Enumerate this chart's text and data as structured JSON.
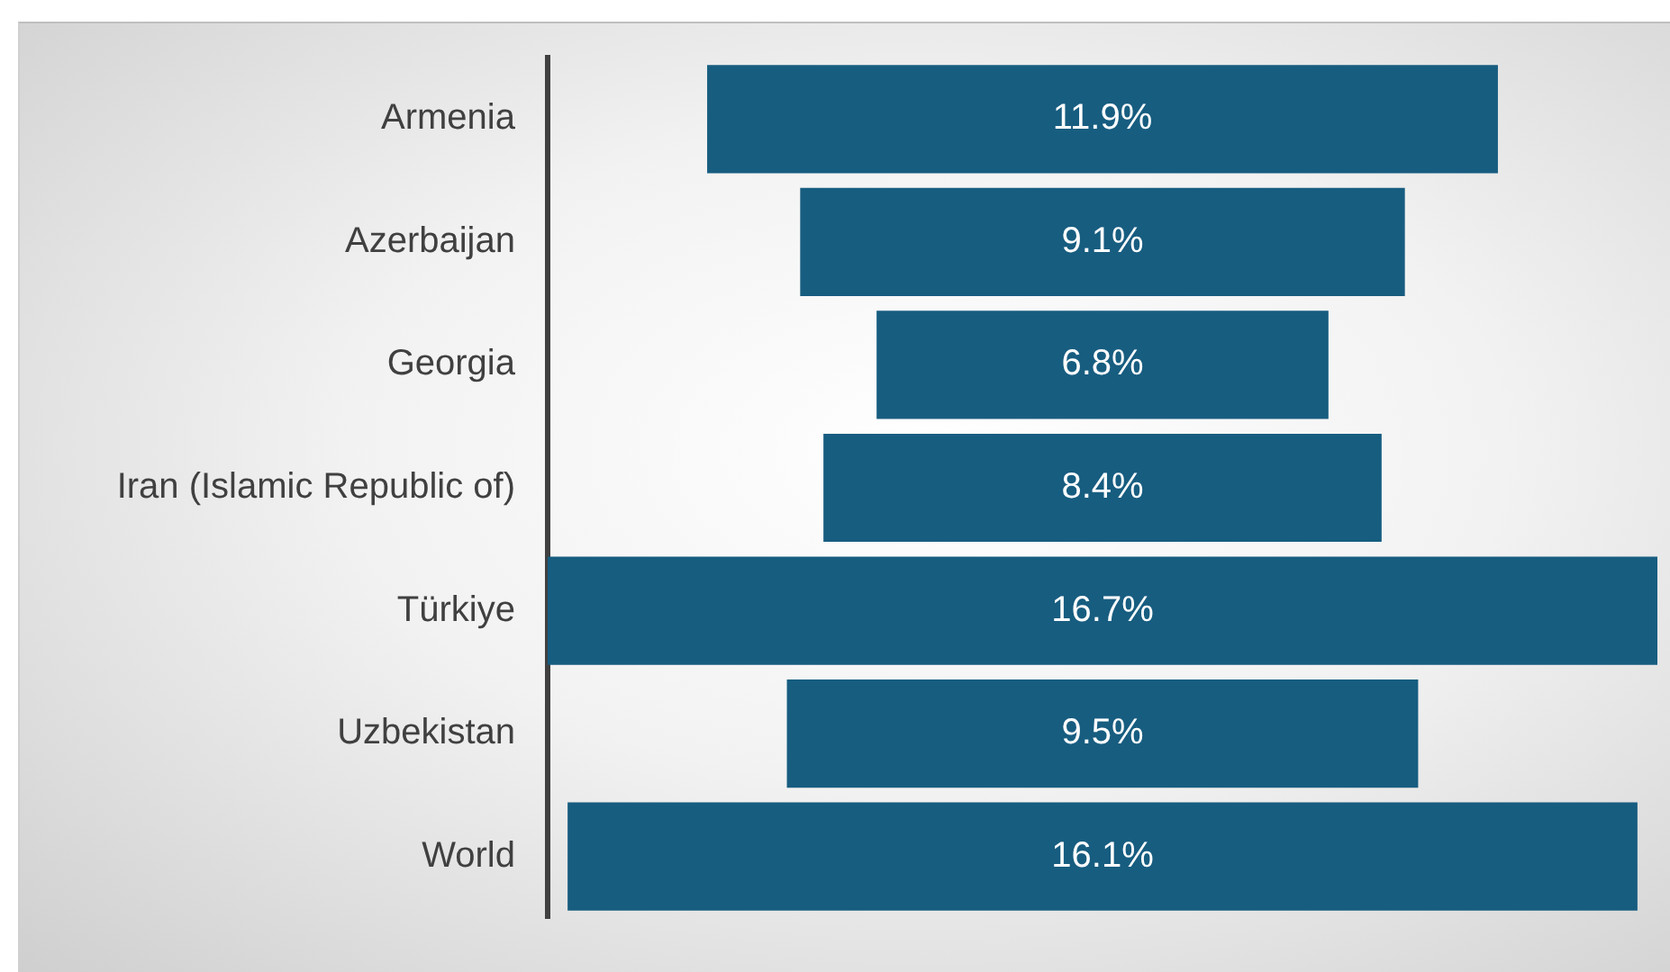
{
  "chart_data": {
    "type": "other",
    "categories": [
      "Armenia",
      "Azerbaijan",
      "Georgia",
      "Iran (Islamic Republic of)",
      "Türkiye",
      "Uzbekistan",
      "World"
    ],
    "values": [
      11.9,
      9.1,
      6.8,
      8.4,
      16.7,
      9.5,
      16.1
    ],
    "value_labels": [
      "11.9%",
      "9.1%",
      "6.8%",
      "8.4%",
      "16.7%",
      "9.5%",
      "16.1%"
    ],
    "color": "#175d80"
  }
}
